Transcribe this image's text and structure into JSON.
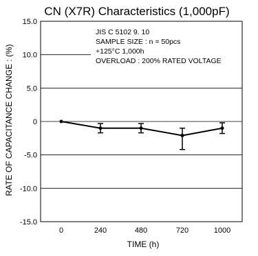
{
  "chart_data": {
    "type": "line",
    "title": "CN (X7R) Characteristics (1,000pF)",
    "xlabel": "TIME  (h)",
    "ylabel": "RATE OF CAPACITANCE CHANGE : (%)",
    "categories": [
      "0",
      "240",
      "480",
      "720",
      "1000"
    ],
    "y_ticks": [
      "15.0",
      "10.0",
      "5.0",
      "0",
      "-5.0",
      "-10.0",
      "-15.0"
    ],
    "ylim": [
      -15,
      15
    ],
    "grid": "horizontal",
    "series": [
      {
        "values": [
          0,
          -1.0,
          -1.0,
          -2.1,
          -1.0
        ],
        "err_min": [
          0,
          -1.7,
          -1.7,
          -4.2,
          -1.8
        ],
        "err_max": [
          0,
          -0.3,
          -0.3,
          -1.0,
          -0.2
        ]
      }
    ],
    "annotations": [
      "JIS C 5102 9. 10",
      "SAMPLE SIZE : n = 50pcs",
      "+125°C 1,000h",
      "OVERLOAD : 200% RATED VOLTAGE"
    ]
  }
}
